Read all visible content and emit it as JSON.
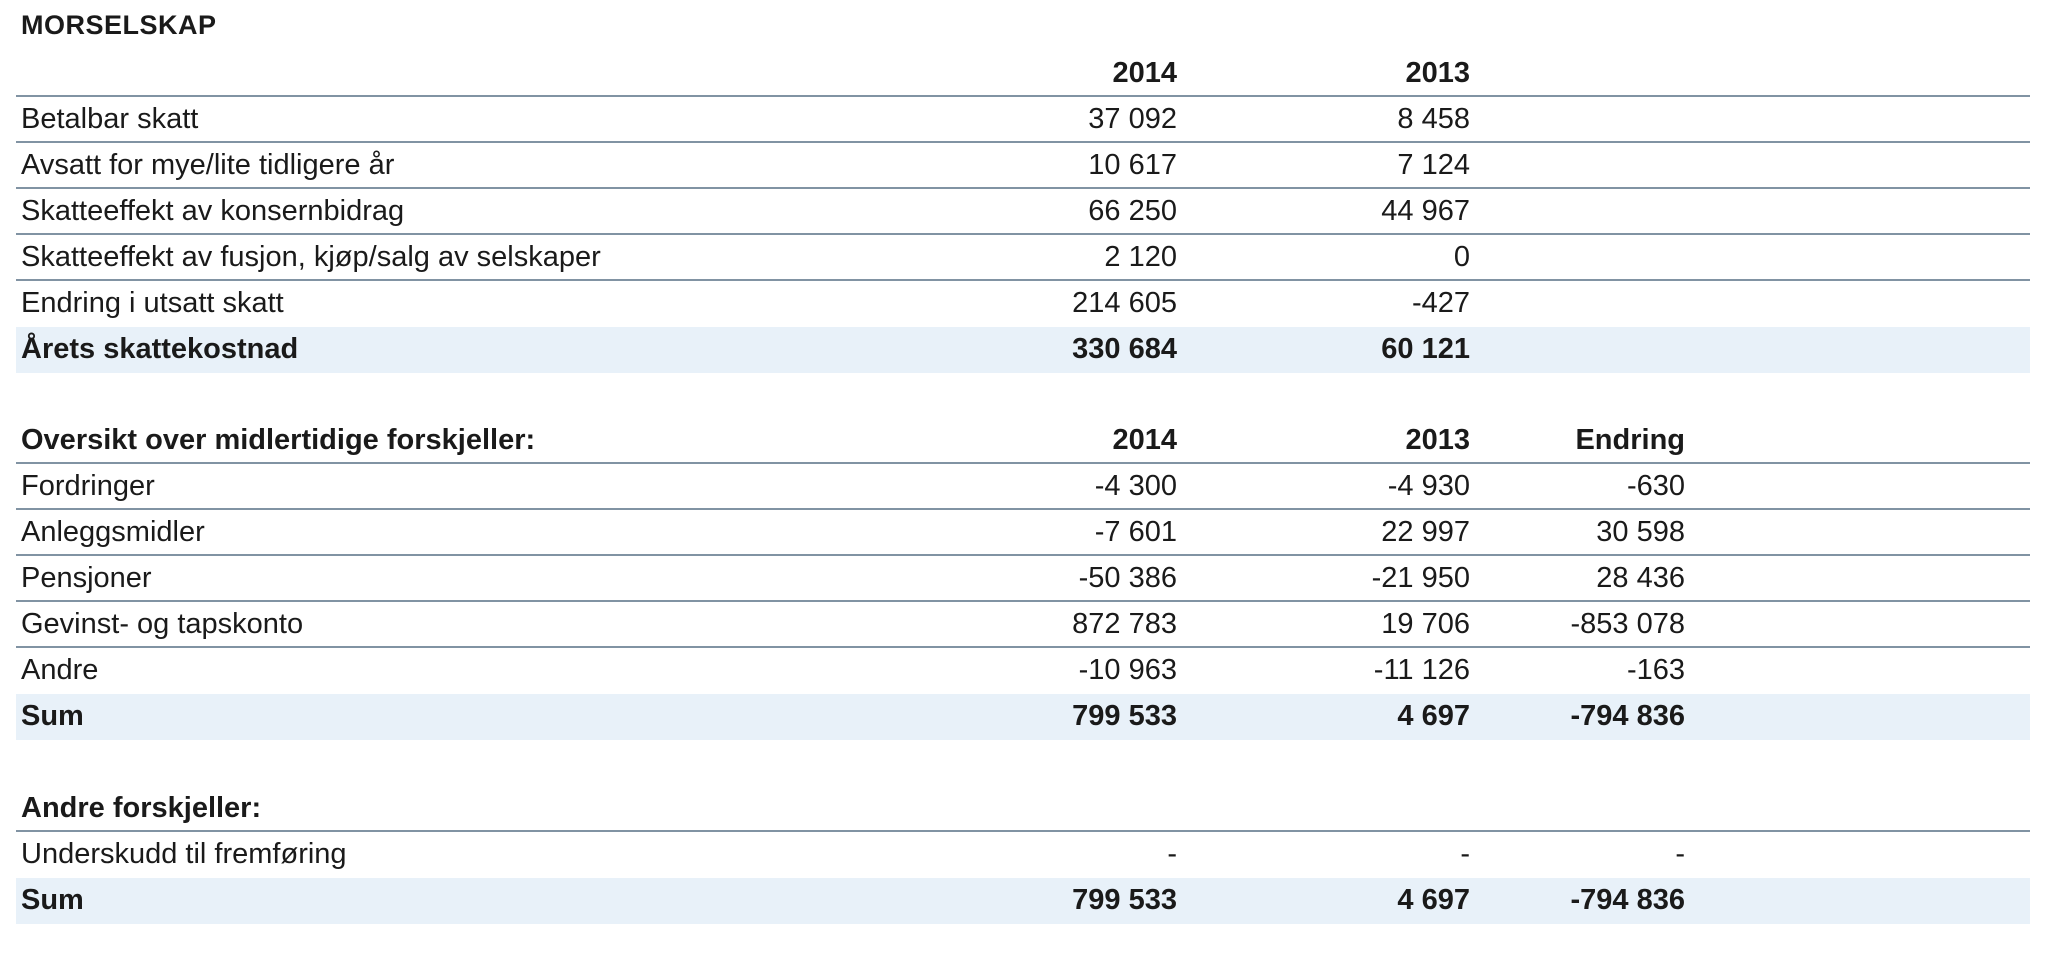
{
  "title": "MORSELSKAP",
  "tax_table": {
    "header": {
      "label": "",
      "col1": "2014",
      "col2": "2013"
    },
    "rows": [
      {
        "label": "Betalbar skatt",
        "col1": "37 092",
        "col2": "8 458"
      },
      {
        "label": "Avsatt for mye/lite tidligere år",
        "col1": "10 617",
        "col2": "7 124"
      },
      {
        "label": "Skatteeffekt av konsernbidrag",
        "col1": "66 250",
        "col2": "44 967"
      },
      {
        "label": "Skatteeffekt av fusjon, kjøp/salg av selskaper",
        "col1": "2 120",
        "col2": "0"
      },
      {
        "label": "Endring i utsatt skatt",
        "col1": "214 605",
        "col2": "-427"
      }
    ],
    "total": {
      "label": "Årets skattekostnad",
      "col1": "330 684",
      "col2": "60 121"
    }
  },
  "temp_diff_table": {
    "header": {
      "label": "Oversikt over midlertidige forskjeller:",
      "col1": "2014",
      "col2": "2013",
      "col3": "Endring"
    },
    "rows": [
      {
        "label": "Fordringer",
        "col1": "-4 300",
        "col2": "-4 930",
        "col3": "-630"
      },
      {
        "label": "Anleggsmidler",
        "col1": "-7 601",
        "col2": "22 997",
        "col3": "30 598"
      },
      {
        "label": "Pensjoner",
        "col1": "-50 386",
        "col2": "-21 950",
        "col3": "28 436"
      },
      {
        "label": "Gevinst- og tapskonto",
        "col1": "872 783",
        "col2": "19 706",
        "col3": "-853 078"
      },
      {
        "label": "Andre",
        "col1": "-10 963",
        "col2": "-11 126",
        "col3": "-163"
      }
    ],
    "total": {
      "label": "Sum",
      "col1": "799 533",
      "col2": "4 697",
      "col3": "-794 836"
    }
  },
  "other_diff_table": {
    "header": {
      "label": "Andre forskjeller:"
    },
    "rows": [
      {
        "label": "Underskudd til fremføring",
        "col1": "-",
        "col2": "-",
        "col3": "-"
      }
    ],
    "total": {
      "label": "Sum",
      "col1": "799 533",
      "col2": "4 697",
      "col3": "-794 836"
    }
  }
}
